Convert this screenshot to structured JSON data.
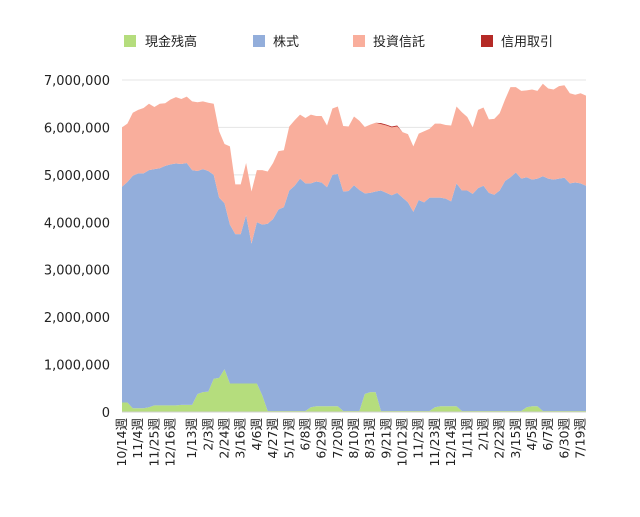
{
  "chart_data": {
    "type": "area",
    "stacked": true,
    "title": "",
    "xlabel": "",
    "ylabel": "",
    "ylim": [
      0,
      7000000
    ],
    "yticks": [
      0,
      1000000,
      2000000,
      3000000,
      4000000,
      5000000,
      6000000,
      7000000
    ],
    "ytick_labels": [
      "0",
      "1,000,000",
      "2,000,000",
      "3,000,000",
      "4,000,000",
      "5,000,000",
      "6,000,000",
      "7,000,000"
    ],
    "grid": true,
    "legend_position": "top",
    "x_tick_labels": [
      "10/14週",
      "11/4週",
      "11/25週",
      "12/16週",
      "1/13週",
      "2/3週",
      "2/24週",
      "3/16週",
      "4/6週",
      "4/27週",
      "5/17週",
      "6/8週",
      "6/29週",
      "7/20週",
      "8/10週",
      "8/31週",
      "9/21週",
      "10/12週",
      "11/2週",
      "11/23週",
      "12/14週",
      "1/11週",
      "2/1週",
      "2/22週",
      "3/15週",
      "4/5週",
      "6/7週",
      "6/30週",
      "7/19週"
    ],
    "x_tick_index": [
      0,
      3,
      6,
      9,
      13,
      16,
      19,
      22,
      25,
      28,
      31,
      34,
      37,
      40,
      43,
      46,
      49,
      52,
      55,
      58,
      61,
      64,
      67,
      70,
      73,
      76,
      79,
      82,
      85
    ],
    "series": [
      {
        "name": "現金残高",
        "color": "#b5dd7d",
        "values": [
          200000,
          200000,
          80000,
          80000,
          80000,
          100000,
          140000,
          140000,
          140000,
          140000,
          140000,
          150000,
          150000,
          150000,
          380000,
          420000,
          430000,
          700000,
          720000,
          900000,
          600000,
          600000,
          600000,
          600000,
          600000,
          600000,
          350000,
          20000,
          20000,
          20000,
          20000,
          20000,
          20000,
          20000,
          20000,
          100000,
          120000,
          120000,
          120000,
          120000,
          120000,
          20000,
          20000,
          20000,
          20000,
          380000,
          420000,
          420000,
          20000,
          20000,
          20000,
          20000,
          20000,
          20000,
          20000,
          20000,
          20000,
          20000,
          100000,
          120000,
          120000,
          120000,
          120000,
          20000,
          20000,
          20000,
          20000,
          20000,
          20000,
          20000,
          20000,
          20000,
          20000,
          20000,
          20000,
          100000,
          120000,
          120000,
          20000,
          20000,
          20000,
          20000,
          20000,
          20000,
          20000,
          20000,
          20000
        ]
      },
      {
        "name": "株式",
        "color": "#93aedb",
        "values": [
          4550000,
          4650000,
          4900000,
          4950000,
          4950000,
          5000000,
          4980000,
          5000000,
          5050000,
          5080000,
          5100000,
          5080000,
          5100000,
          4950000,
          4700000,
          4700000,
          4650000,
          4300000,
          3800000,
          3500000,
          3350000,
          3150000,
          3150000,
          3550000,
          2950000,
          3400000,
          3600000,
          3950000,
          4050000,
          4250000,
          4300000,
          4650000,
          4750000,
          4900000,
          4800000,
          4720000,
          4740000,
          4720000,
          4620000,
          4880000,
          4900000,
          4630000,
          4640000,
          4760000,
          4660000,
          4230000,
          4200000,
          4230000,
          4650000,
          4600000,
          4550000,
          4600000,
          4500000,
          4400000,
          4200000,
          4450000,
          4400000,
          4500000,
          4420000,
          4400000,
          4380000,
          4320000,
          4700000,
          4650000,
          4650000,
          4580000,
          4700000,
          4750000,
          4600000,
          4560000,
          4650000,
          4850000,
          4930000,
          5030000,
          4900000,
          4850000,
          4780000,
          4800000,
          4950000,
          4900000,
          4880000,
          4900000,
          4920000,
          4800000,
          4820000,
          4800000,
          4750000
        ]
      },
      {
        "name": "投資信託",
        "color": "#f9ae9c",
        "values": [
          1250000,
          1230000,
          1330000,
          1340000,
          1380000,
          1400000,
          1310000,
          1360000,
          1320000,
          1370000,
          1400000,
          1370000,
          1400000,
          1450000,
          1450000,
          1430000,
          1440000,
          1500000,
          1400000,
          1250000,
          1650000,
          1050000,
          1050000,
          1100000,
          1100000,
          1100000,
          1150000,
          1100000,
          1180000,
          1230000,
          1200000,
          1350000,
          1380000,
          1350000,
          1380000,
          1450000,
          1380000,
          1400000,
          1300000,
          1400000,
          1420000,
          1380000,
          1360000,
          1450000,
          1460000,
          1400000,
          1440000,
          1450000,
          1400000,
          1420000,
          1430000,
          1400000,
          1380000,
          1440000,
          1380000,
          1400000,
          1500000,
          1450000,
          1560000,
          1560000,
          1550000,
          1600000,
          1620000,
          1650000,
          1550000,
          1400000,
          1650000,
          1650000,
          1550000,
          1600000,
          1630000,
          1720000,
          1900000,
          1800000,
          1850000,
          1830000,
          1900000,
          1850000,
          1950000,
          1900000,
          1900000,
          1950000,
          1950000,
          1900000,
          1850000,
          1900000,
          1900000
        ]
      },
      {
        "name": "信用取引",
        "color": "#b52a26",
        "values": [
          0,
          0,
          0,
          0,
          0,
          0,
          0,
          0,
          0,
          0,
          0,
          0,
          0,
          0,
          0,
          0,
          0,
          0,
          0,
          0,
          0,
          0,
          0,
          0,
          0,
          0,
          0,
          0,
          0,
          0,
          0,
          0,
          0,
          0,
          0,
          0,
          0,
          0,
          0,
          0,
          0,
          0,
          0,
          0,
          0,
          0,
          0,
          0,
          20000,
          20000,
          20000,
          20000,
          0,
          0,
          0,
          0,
          0,
          0,
          0,
          0,
          0,
          0,
          0,
          0,
          0,
          0,
          0,
          0,
          0,
          0,
          0,
          0,
          0,
          0,
          0,
          0,
          0,
          0,
          0,
          0,
          0,
          0,
          0,
          0,
          0,
          0,
          0
        ]
      }
    ]
  }
}
